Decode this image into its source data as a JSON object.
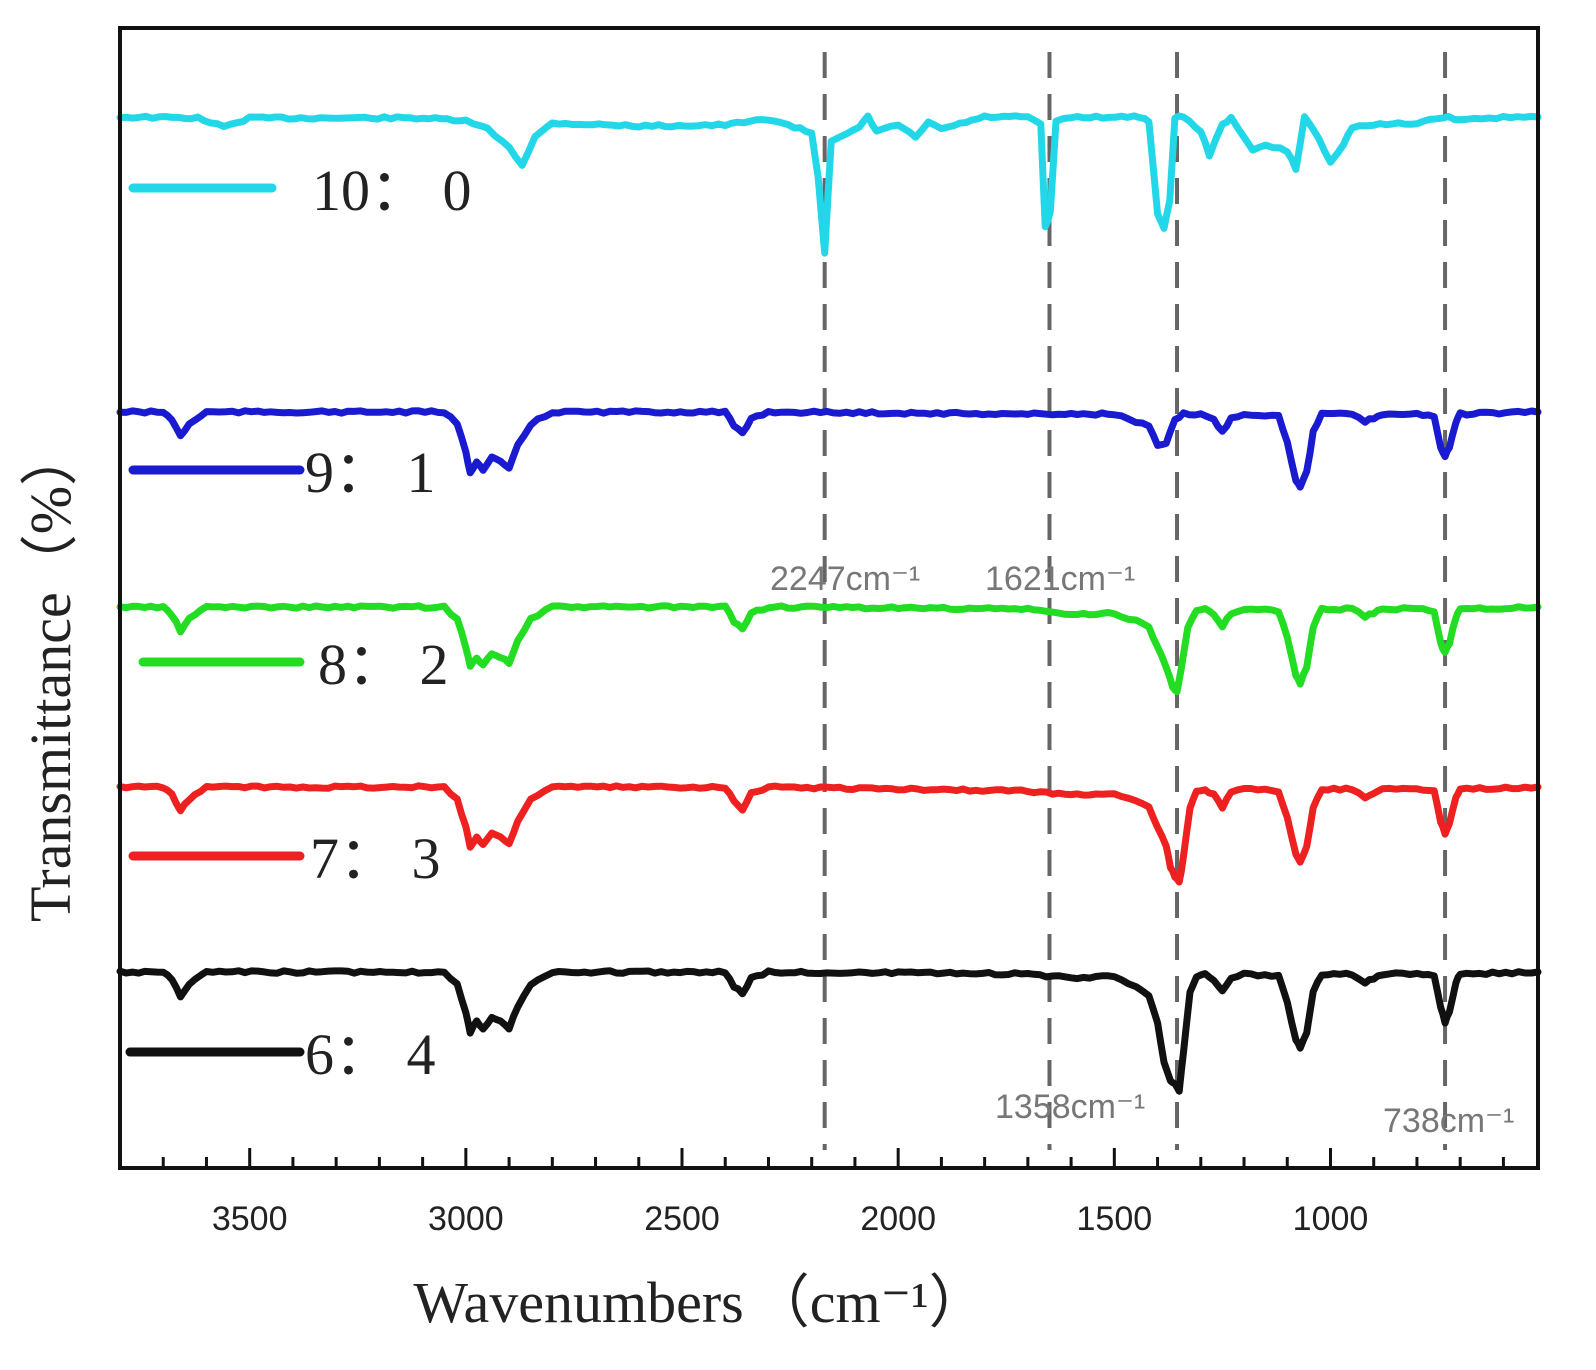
{
  "chart_data": {
    "type": "line",
    "title": "",
    "xlabel": "Wavenumbers (cm⁻¹)",
    "xlabel_main": "Wavenumbers",
    "xlabel_unit": "（cm⁻¹）",
    "ylabel": "Transmittance（%）",
    "xlim": [
      3800,
      520
    ],
    "x_reversed": true,
    "yticks_shown": false,
    "xticks": [
      3500,
      3000,
      2500,
      2000,
      1500,
      1000
    ],
    "xtick_labels": [
      "3500",
      "3000",
      "2500",
      "2000",
      "1500",
      "1000"
    ],
    "reference_lines": [
      {
        "x": 2170,
        "label": "2247cm⁻¹"
      },
      {
        "x": 1650,
        "label": "1621cm⁻¹"
      },
      {
        "x": 1355,
        "label": "1358cm⁻¹"
      },
      {
        "x": 735,
        "label": "738cm⁻¹"
      }
    ],
    "series": [
      {
        "name": "10： 0",
        "color": "#22d8e8",
        "baseline": 0,
        "points": [
          [
            3800,
            0
          ],
          [
            3620,
            1
          ],
          [
            3560,
            10
          ],
          [
            3500,
            1
          ],
          [
            3100,
            1
          ],
          [
            3000,
            4
          ],
          [
            2950,
            12
          ],
          [
            2900,
            30
          ],
          [
            2870,
            48
          ],
          [
            2840,
            20
          ],
          [
            2800,
            6
          ],
          [
            2600,
            9
          ],
          [
            2400,
            8
          ],
          [
            2300,
            2
          ],
          [
            2240,
            10
          ],
          [
            2200,
            16
          ],
          [
            2185,
            60
          ],
          [
            2170,
            135
          ],
          [
            2155,
            25
          ],
          [
            2120,
            18
          ],
          [
            2090,
            10
          ],
          [
            2070,
            0
          ],
          [
            2050,
            14
          ],
          [
            2000,
            8
          ],
          [
            1960,
            20
          ],
          [
            1930,
            6
          ],
          [
            1900,
            12
          ],
          [
            1800,
            0
          ],
          [
            1700,
            0
          ],
          [
            1670,
            8
          ],
          [
            1660,
            110
          ],
          [
            1648,
            96
          ],
          [
            1635,
            4
          ],
          [
            1600,
            0
          ],
          [
            1440,
            0
          ],
          [
            1420,
            4
          ],
          [
            1400,
            96
          ],
          [
            1385,
            112
          ],
          [
            1372,
            84
          ],
          [
            1360,
            0
          ],
          [
            1340,
            0
          ],
          [
            1300,
            14
          ],
          [
            1280,
            38
          ],
          [
            1250,
            8
          ],
          [
            1230,
            0
          ],
          [
            1180,
            34
          ],
          [
            1150,
            28
          ],
          [
            1100,
            34
          ],
          [
            1080,
            52
          ],
          [
            1060,
            0
          ],
          [
            1040,
            12
          ],
          [
            1000,
            44
          ],
          [
            970,
            28
          ],
          [
            950,
            10
          ],
          [
            900,
            8
          ],
          [
            800,
            6
          ],
          [
            740,
            0
          ],
          [
            700,
            2
          ],
          [
            650,
            2
          ],
          [
            600,
            0
          ],
          [
            520,
            0
          ]
        ]
      },
      {
        "name": "9： 1",
        "color": "#1a1ad0",
        "baseline": 295,
        "points": [
          [
            3800,
            0
          ],
          [
            3700,
            0
          ],
          [
            3680,
            8
          ],
          [
            3660,
            24
          ],
          [
            3640,
            12
          ],
          [
            3600,
            0
          ],
          [
            3050,
            0
          ],
          [
            3020,
            12
          ],
          [
            3000,
            40
          ],
          [
            2990,
            60
          ],
          [
            2975,
            50
          ],
          [
            2960,
            58
          ],
          [
            2940,
            46
          ],
          [
            2920,
            50
          ],
          [
            2900,
            56
          ],
          [
            2880,
            34
          ],
          [
            2850,
            12
          ],
          [
            2800,
            0
          ],
          [
            2400,
            0
          ],
          [
            2380,
            14
          ],
          [
            2360,
            22
          ],
          [
            2340,
            6
          ],
          [
            2300,
            0
          ],
          [
            1700,
            2
          ],
          [
            1600,
            2
          ],
          [
            1500,
            2
          ],
          [
            1450,
            10
          ],
          [
            1420,
            14
          ],
          [
            1400,
            34
          ],
          [
            1380,
            32
          ],
          [
            1360,
            8
          ],
          [
            1340,
            2
          ],
          [
            1300,
            2
          ],
          [
            1270,
            8
          ],
          [
            1250,
            20
          ],
          [
            1230,
            6
          ],
          [
            1200,
            2
          ],
          [
            1120,
            4
          ],
          [
            1100,
            30
          ],
          [
            1080,
            68
          ],
          [
            1070,
            74
          ],
          [
            1055,
            60
          ],
          [
            1040,
            20
          ],
          [
            1020,
            2
          ],
          [
            950,
            2
          ],
          [
            920,
            10
          ],
          [
            900,
            6
          ],
          [
            880,
            2
          ],
          [
            800,
            2
          ],
          [
            760,
            4
          ],
          [
            745,
            36
          ],
          [
            735,
            44
          ],
          [
            725,
            36
          ],
          [
            710,
            10
          ],
          [
            700,
            2
          ],
          [
            520,
            0
          ]
        ]
      },
      {
        "name": "8： 2",
        "color": "#22dd22",
        "baseline": 490,
        "points": [
          [
            3800,
            0
          ],
          [
            3700,
            0
          ],
          [
            3680,
            8
          ],
          [
            3660,
            24
          ],
          [
            3640,
            12
          ],
          [
            3600,
            0
          ],
          [
            3050,
            0
          ],
          [
            3020,
            12
          ],
          [
            3000,
            40
          ],
          [
            2990,
            60
          ],
          [
            2975,
            50
          ],
          [
            2960,
            58
          ],
          [
            2940,
            46
          ],
          [
            2920,
            50
          ],
          [
            2900,
            56
          ],
          [
            2880,
            34
          ],
          [
            2850,
            12
          ],
          [
            2800,
            0
          ],
          [
            2400,
            0
          ],
          [
            2380,
            14
          ],
          [
            2360,
            22
          ],
          [
            2340,
            6
          ],
          [
            2300,
            0
          ],
          [
            1700,
            2
          ],
          [
            1600,
            8
          ],
          [
            1500,
            6
          ],
          [
            1450,
            14
          ],
          [
            1420,
            20
          ],
          [
            1400,
            40
          ],
          [
            1380,
            60
          ],
          [
            1365,
            80
          ],
          [
            1355,
            84
          ],
          [
            1345,
            60
          ],
          [
            1330,
            20
          ],
          [
            1310,
            4
          ],
          [
            1290,
            2
          ],
          [
            1270,
            8
          ],
          [
            1250,
            20
          ],
          [
            1230,
            6
          ],
          [
            1200,
            2
          ],
          [
            1120,
            4
          ],
          [
            1100,
            30
          ],
          [
            1080,
            68
          ],
          [
            1070,
            76
          ],
          [
            1055,
            60
          ],
          [
            1040,
            20
          ],
          [
            1020,
            2
          ],
          [
            950,
            2
          ],
          [
            920,
            10
          ],
          [
            900,
            6
          ],
          [
            880,
            2
          ],
          [
            800,
            2
          ],
          [
            760,
            4
          ],
          [
            745,
            36
          ],
          [
            735,
            46
          ],
          [
            725,
            36
          ],
          [
            710,
            10
          ],
          [
            700,
            2
          ],
          [
            520,
            0
          ]
        ]
      },
      {
        "name": "7： 3",
        "color": "#ee2020",
        "baseline": 670,
        "points": [
          [
            3800,
            0
          ],
          [
            3700,
            0
          ],
          [
            3680,
            8
          ],
          [
            3660,
            24
          ],
          [
            3640,
            12
          ],
          [
            3600,
            0
          ],
          [
            3050,
            0
          ],
          [
            3020,
            12
          ],
          [
            3000,
            40
          ],
          [
            2990,
            60
          ],
          [
            2975,
            50
          ],
          [
            2960,
            58
          ],
          [
            2940,
            46
          ],
          [
            2920,
            50
          ],
          [
            2900,
            56
          ],
          [
            2880,
            34
          ],
          [
            2850,
            12
          ],
          [
            2800,
            0
          ],
          [
            2400,
            0
          ],
          [
            2380,
            14
          ],
          [
            2360,
            22
          ],
          [
            2340,
            6
          ],
          [
            2300,
            0
          ],
          [
            1700,
            4
          ],
          [
            1600,
            8
          ],
          [
            1500,
            6
          ],
          [
            1450,
            14
          ],
          [
            1420,
            20
          ],
          [
            1400,
            40
          ],
          [
            1380,
            60
          ],
          [
            1370,
            80
          ],
          [
            1360,
            90
          ],
          [
            1350,
            96
          ],
          [
            1340,
            70
          ],
          [
            1325,
            20
          ],
          [
            1310,
            4
          ],
          [
            1290,
            2
          ],
          [
            1270,
            8
          ],
          [
            1250,
            20
          ],
          [
            1230,
            6
          ],
          [
            1200,
            2
          ],
          [
            1120,
            4
          ],
          [
            1100,
            30
          ],
          [
            1080,
            68
          ],
          [
            1070,
            76
          ],
          [
            1055,
            60
          ],
          [
            1040,
            20
          ],
          [
            1020,
            2
          ],
          [
            950,
            2
          ],
          [
            920,
            10
          ],
          [
            900,
            6
          ],
          [
            880,
            2
          ],
          [
            800,
            2
          ],
          [
            760,
            4
          ],
          [
            745,
            36
          ],
          [
            735,
            46
          ],
          [
            725,
            36
          ],
          [
            710,
            10
          ],
          [
            700,
            2
          ],
          [
            520,
            0
          ]
        ]
      },
      {
        "name": "6： 4",
        "color": "#111111",
        "baseline": 855,
        "points": [
          [
            3800,
            0
          ],
          [
            3700,
            0
          ],
          [
            3680,
            8
          ],
          [
            3660,
            24
          ],
          [
            3640,
            12
          ],
          [
            3600,
            0
          ],
          [
            3050,
            0
          ],
          [
            3020,
            12
          ],
          [
            3000,
            40
          ],
          [
            2990,
            60
          ],
          [
            2975,
            50
          ],
          [
            2960,
            58
          ],
          [
            2940,
            46
          ],
          [
            2920,
            50
          ],
          [
            2900,
            56
          ],
          [
            2880,
            34
          ],
          [
            2850,
            12
          ],
          [
            2800,
            0
          ],
          [
            2400,
            0
          ],
          [
            2380,
            14
          ],
          [
            2360,
            22
          ],
          [
            2340,
            6
          ],
          [
            2300,
            0
          ],
          [
            1700,
            2
          ],
          [
            1600,
            6
          ],
          [
            1500,
            4
          ],
          [
            1450,
            14
          ],
          [
            1420,
            24
          ],
          [
            1400,
            50
          ],
          [
            1385,
            90
          ],
          [
            1370,
            110
          ],
          [
            1360,
            112
          ],
          [
            1350,
            120
          ],
          [
            1340,
            80
          ],
          [
            1325,
            20
          ],
          [
            1310,
            4
          ],
          [
            1290,
            2
          ],
          [
            1270,
            8
          ],
          [
            1250,
            20
          ],
          [
            1230,
            6
          ],
          [
            1200,
            2
          ],
          [
            1120,
            4
          ],
          [
            1100,
            30
          ],
          [
            1080,
            68
          ],
          [
            1070,
            76
          ],
          [
            1055,
            60
          ],
          [
            1040,
            20
          ],
          [
            1020,
            2
          ],
          [
            950,
            2
          ],
          [
            920,
            10
          ],
          [
            900,
            6
          ],
          [
            880,
            2
          ],
          [
            800,
            2
          ],
          [
            760,
            4
          ],
          [
            745,
            36
          ],
          [
            735,
            50
          ],
          [
            725,
            40
          ],
          [
            710,
            10
          ],
          [
            700,
            2
          ],
          [
            520,
            0
          ]
        ]
      }
    ]
  }
}
